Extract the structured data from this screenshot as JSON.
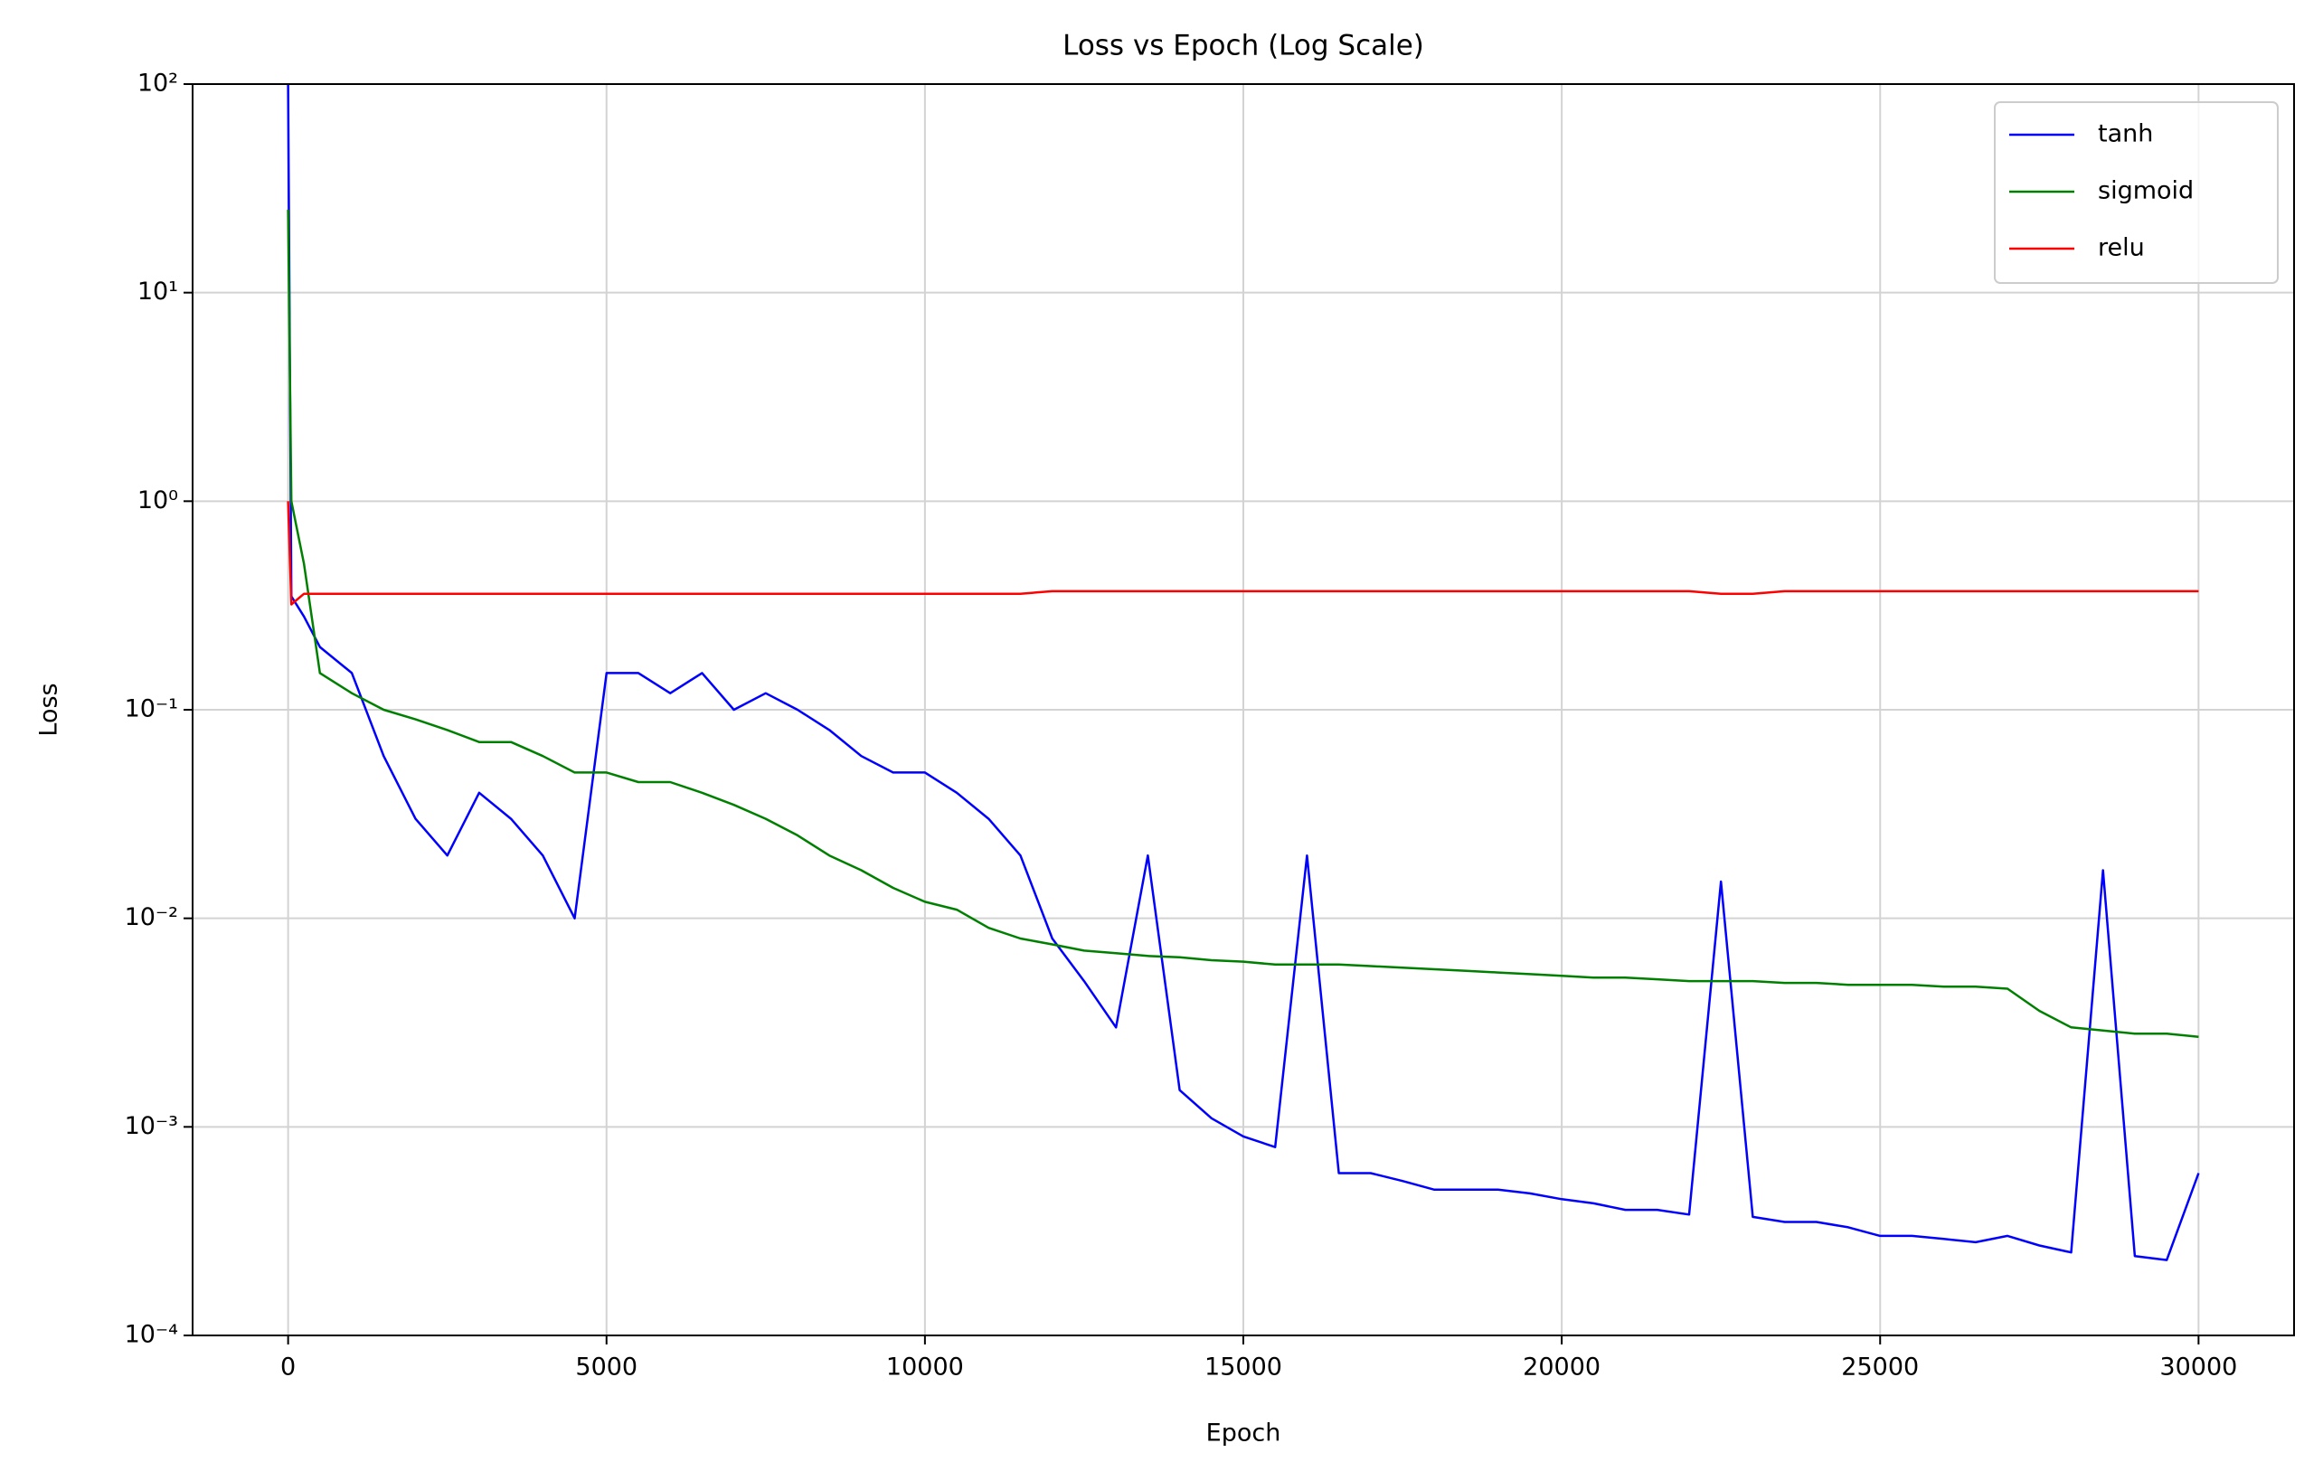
{
  "chart_data": {
    "type": "line",
    "title": "Loss vs Epoch (Log Scale)",
    "x_label": "Epoch",
    "y_label": "Loss",
    "x": [
      0,
      50,
      250,
      500,
      1000,
      1500,
      2000,
      2500,
      3000,
      3500,
      4000,
      4500,
      5000,
      5500,
      6000,
      6500,
      7000,
      7500,
      8000,
      8500,
      9000,
      9500,
      10000,
      10500,
      11000,
      11500,
      12000,
      12500,
      13000,
      13500,
      14000,
      14500,
      15000,
      15500,
      16000,
      16500,
      17000,
      17500,
      18000,
      18500,
      19000,
      19500,
      20000,
      20500,
      21000,
      21500,
      22000,
      22500,
      23000,
      23500,
      24000,
      24500,
      25000,
      25500,
      26000,
      26500,
      27000,
      27500,
      28000,
      28500,
      29000,
      29500,
      30000
    ],
    "series": [
      {
        "name": "tanh",
        "color": "#0000ff",
        "values": [
          100,
          0.35,
          0.28,
          0.2,
          0.15,
          0.06,
          0.03,
          0.02,
          0.04,
          0.03,
          0.02,
          0.01,
          0.15,
          0.15,
          0.12,
          0.15,
          0.1,
          0.12,
          0.1,
          0.08,
          0.06,
          0.05,
          0.05,
          0.04,
          0.03,
          0.02,
          0.008,
          0.005,
          0.003,
          0.02,
          0.0015,
          0.0011,
          0.0009,
          0.0008,
          0.02,
          0.0006,
          0.0006,
          0.00055,
          0.0005,
          0.0005,
          0.0005,
          0.00048,
          0.00045,
          0.00043,
          0.0004,
          0.0004,
          0.00038,
          0.015,
          0.00037,
          0.00035,
          0.00035,
          0.00033,
          0.0003,
          0.0003,
          0.00029,
          0.00028,
          0.0003,
          0.00027,
          0.00025,
          0.017,
          0.00024,
          0.00023,
          0.0006
        ]
      },
      {
        "name": "sigmoid",
        "color": "#008000",
        "values": [
          25,
          1.0,
          0.5,
          0.15,
          0.12,
          0.1,
          0.09,
          0.08,
          0.07,
          0.07,
          0.06,
          0.05,
          0.05,
          0.045,
          0.045,
          0.04,
          0.035,
          0.03,
          0.025,
          0.02,
          0.017,
          0.014,
          0.012,
          0.011,
          0.009,
          0.008,
          0.0075,
          0.007,
          0.0068,
          0.0066,
          0.0065,
          0.0063,
          0.0062,
          0.006,
          0.006,
          0.006,
          0.0059,
          0.0058,
          0.0057,
          0.0056,
          0.0055,
          0.0054,
          0.0053,
          0.0052,
          0.0052,
          0.0051,
          0.005,
          0.005,
          0.005,
          0.0049,
          0.0049,
          0.0048,
          0.0048,
          0.0048,
          0.0047,
          0.0047,
          0.0046,
          0.0036,
          0.003,
          0.0029,
          0.0028,
          0.0028,
          0.0027
        ]
      },
      {
        "name": "relu",
        "color": "#ff0000",
        "values": [
          1.0,
          0.32,
          0.36,
          0.36,
          0.36,
          0.36,
          0.36,
          0.36,
          0.36,
          0.36,
          0.36,
          0.36,
          0.36,
          0.36,
          0.36,
          0.36,
          0.36,
          0.36,
          0.36,
          0.36,
          0.36,
          0.36,
          0.36,
          0.36,
          0.36,
          0.36,
          0.37,
          0.37,
          0.37,
          0.37,
          0.37,
          0.37,
          0.37,
          0.37,
          0.37,
          0.37,
          0.37,
          0.37,
          0.37,
          0.37,
          0.37,
          0.37,
          0.37,
          0.37,
          0.37,
          0.37,
          0.37,
          0.36,
          0.36,
          0.37,
          0.37,
          0.37,
          0.37,
          0.37,
          0.37,
          0.37,
          0.37,
          0.37,
          0.37,
          0.37,
          0.37,
          0.37,
          0.37
        ]
      }
    ],
    "xlim": [
      -1500,
      31500
    ],
    "xticks": [
      0,
      5000,
      10000,
      15000,
      20000,
      25000,
      30000
    ],
    "ylim": [
      0.0001,
      100
    ],
    "yscale": "log",
    "yticks": [
      {
        "value": 0.0001,
        "label": "10⁻⁴"
      },
      {
        "value": 0.001,
        "label": "10⁻³"
      },
      {
        "value": 0.01,
        "label": "10⁻²"
      },
      {
        "value": 0.1,
        "label": "10⁻¹"
      },
      {
        "value": 1,
        "label": "10⁰"
      },
      {
        "value": 10,
        "label": "10¹"
      },
      {
        "value": 100,
        "label": "10²"
      }
    ],
    "grid": true,
    "legend": "upper right"
  }
}
